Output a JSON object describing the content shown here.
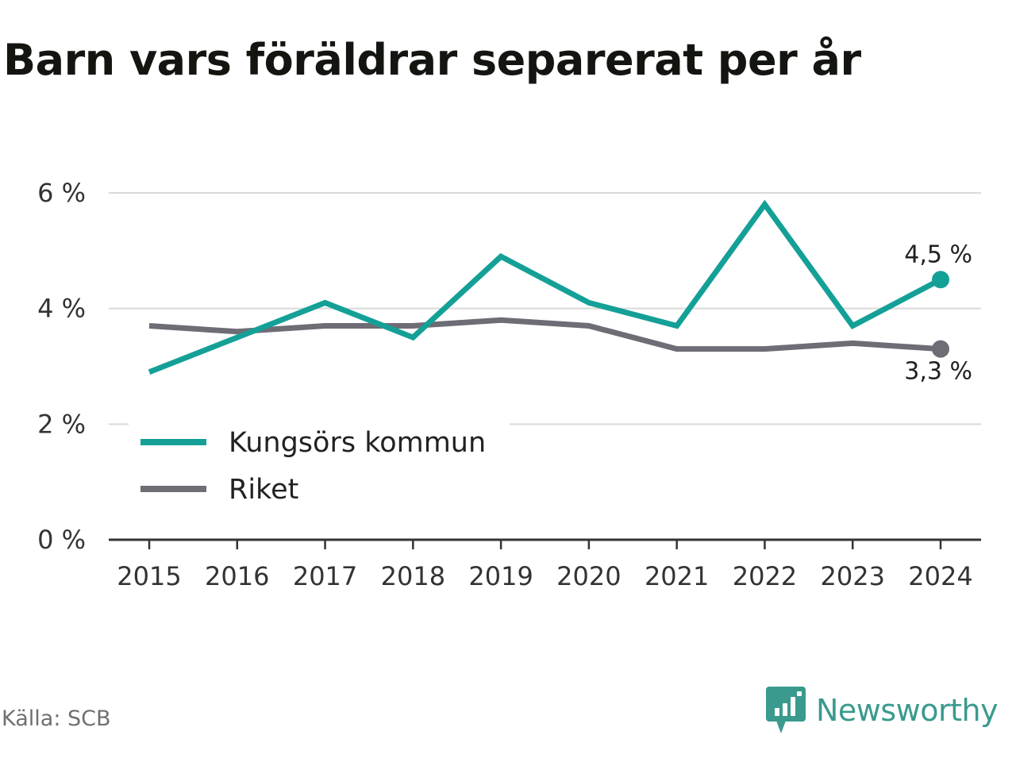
{
  "title": "Barn vars föräldrar separerat per år",
  "source": "Källa: SCB",
  "brand": {
    "name": "Newsworthy",
    "icon": "newsworthy-logo-icon"
  },
  "colors": {
    "kungsor": "#14a097",
    "riket": "#6e6c74",
    "grid": "#d9d9d9",
    "axis": "#333333",
    "text": "#333333",
    "brand": "#3a9a8e"
  },
  "chart_data": {
    "type": "line",
    "x": [
      "2015",
      "2016",
      "2017",
      "2018",
      "2019",
      "2020",
      "2021",
      "2022",
      "2023",
      "2024"
    ],
    "series": [
      {
        "name": "Kungsörs kommun",
        "values": [
          2.9,
          3.5,
          4.1,
          3.5,
          4.9,
          4.1,
          3.7,
          5.8,
          3.7,
          4.5
        ]
      },
      {
        "name": "Riket",
        "values": [
          3.7,
          3.6,
          3.7,
          3.7,
          3.8,
          3.7,
          3.3,
          3.3,
          3.4,
          3.3
        ]
      }
    ],
    "end_labels": [
      "4,5 %",
      "3,3 %"
    ],
    "yticks": [
      0,
      2,
      4,
      6
    ],
    "ytick_labels": [
      "0 %",
      "2 %",
      "4 %",
      "6 %"
    ],
    "ylim": [
      0,
      6
    ],
    "grid": true,
    "legend_position": "bottom-left"
  }
}
